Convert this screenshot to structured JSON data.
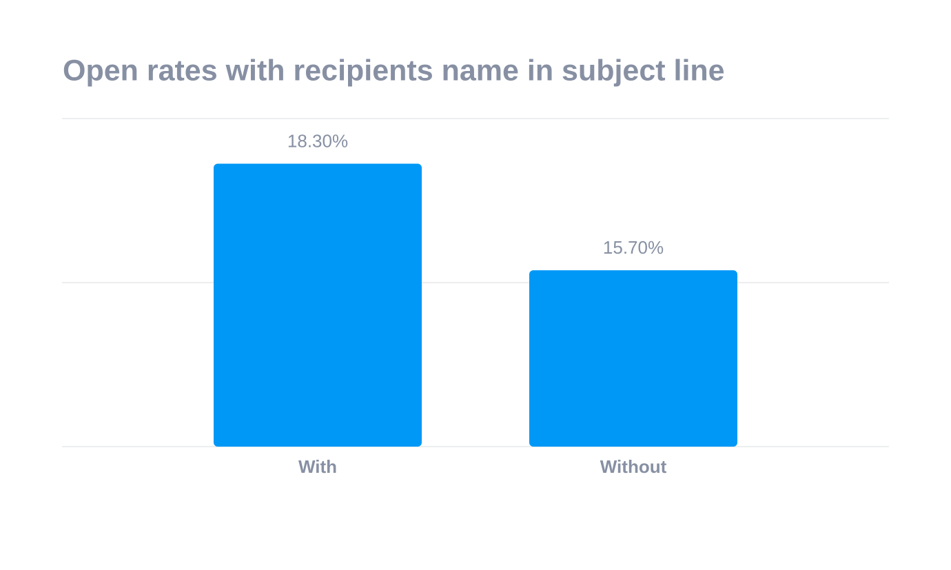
{
  "chart_data": {
    "type": "bar",
    "title": "Open rates with recipients name in subject line",
    "categories": [
      "With",
      "Without"
    ],
    "values": [
      18.3,
      15.7
    ],
    "value_labels": [
      "18.30%",
      "15.70%"
    ],
    "color": "#0098f7",
    "ylim": [
      11.4,
      19.4
    ],
    "yticks": [
      11.4,
      15.4,
      19.4
    ],
    "grid": true
  }
}
